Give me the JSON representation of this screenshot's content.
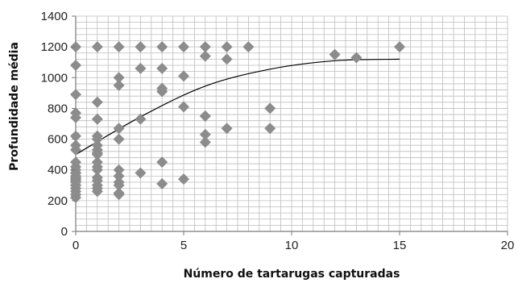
{
  "chart_data": {
    "type": "scatter",
    "title": "",
    "xlabel": "Número de tartarugas capturadas",
    "ylabel": "Profundidade média",
    "xlim": [
      0,
      20
    ],
    "ylim": [
      0,
      1400
    ],
    "x_ticks": [
      0,
      5,
      10,
      15,
      20
    ],
    "y_ticks": [
      0,
      200,
      400,
      600,
      800,
      1000,
      1200,
      1400
    ],
    "x_tick_labels": [
      "0",
      "5",
      "10",
      "15",
      "20"
    ],
    "y_tick_labels": [
      "0",
      "200",
      "400",
      "600",
      "800",
      "1000",
      "1200",
      "1400"
    ],
    "grid": true,
    "marker": "diamond",
    "marker_color": "#8c8c8c",
    "series": [
      {
        "x": [
          0,
          0,
          0,
          0,
          0,
          0,
          0,
          0,
          0,
          0,
          0,
          0,
          0,
          0,
          0,
          0,
          0,
          0,
          0,
          0,
          0,
          0,
          0,
          0,
          1,
          1,
          1,
          1,
          1,
          1,
          1,
          1,
          1,
          1,
          1,
          1,
          1,
          1,
          1,
          1,
          1,
          2,
          2,
          2,
          2,
          2,
          2,
          2,
          2,
          2,
          2,
          2,
          3,
          3,
          3,
          3,
          4,
          4,
          4,
          4,
          4,
          4,
          5,
          5,
          5,
          5,
          6,
          6,
          6,
          6,
          6,
          6,
          7,
          7,
          7,
          8,
          9,
          9,
          12,
          13,
          15
        ],
        "y": [
          1200,
          1080,
          890,
          770,
          740,
          620,
          560,
          530,
          450,
          420,
          400,
          380,
          360,
          340,
          320,
          300,
          280,
          260,
          240,
          220,
          380,
          350,
          330,
          300,
          1200,
          840,
          730,
          620,
          600,
          560,
          530,
          510,
          500,
          450,
          420,
          400,
          350,
          330,
          300,
          280,
          260,
          1200,
          1000,
          950,
          670,
          600,
          400,
          360,
          320,
          300,
          250,
          240,
          1200,
          1060,
          730,
          380,
          1200,
          1060,
          930,
          910,
          450,
          310,
          1200,
          1010,
          810,
          340,
          1200,
          1140,
          750,
          630,
          580,
          750,
          1200,
          1120,
          670,
          1200,
          800,
          670,
          1150,
          1130,
          1200
        ]
      }
    ],
    "trendline": {
      "type": "polynomial",
      "x": [
        0,
        3,
        6,
        9,
        12,
        15
      ],
      "y": [
        500,
        745,
        945,
        1055,
        1110,
        1120
      ],
      "color": "#000000"
    }
  }
}
